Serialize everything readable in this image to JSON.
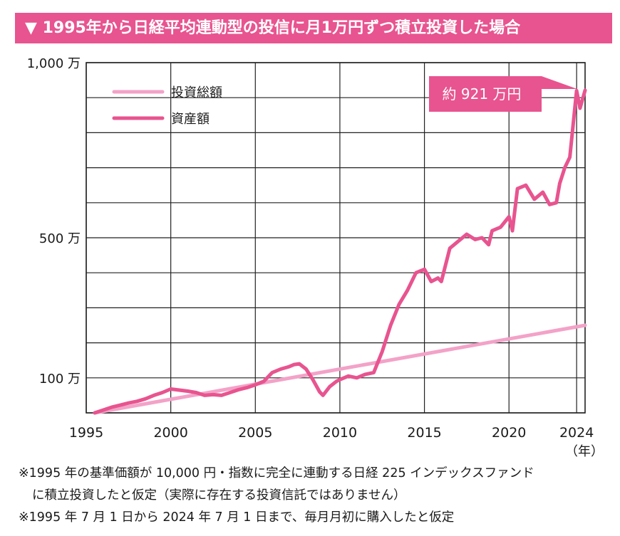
{
  "title": "▼ 1995年から日経平均連動型の投信に月1万円ずつ積立投資した場合",
  "chart_data": {
    "type": "line",
    "x_unit": "（年）",
    "x_ticks": [
      {
        "value": 1995,
        "label": "1995"
      },
      {
        "value": 2000,
        "label": "2000"
      },
      {
        "value": 2005,
        "label": "2005"
      },
      {
        "value": 2010,
        "label": "2010"
      },
      {
        "value": 2015,
        "label": "2015"
      },
      {
        "value": 2020,
        "label": "2020"
      },
      {
        "value": 2024,
        "label": "2024"
      }
    ],
    "xlim": [
      1995,
      2024.5
    ],
    "ylim": [
      0,
      1000
    ],
    "y_ticks": [
      {
        "value": 100,
        "label": "100 万"
      },
      {
        "value": 500,
        "label": "500 万"
      },
      {
        "value": 1000,
        "label": "1,000 万"
      }
    ],
    "y_gridlines": [
      0,
      100,
      200,
      300,
      400,
      500,
      600,
      700,
      800,
      900,
      1000
    ],
    "grid": true,
    "legend_position": "top-left",
    "series": [
      {
        "name": "投資総額",
        "color": "#f3a2c8",
        "x": [
          1995.5,
          2024.5
        ],
        "y": [
          0,
          250
        ]
      },
      {
        "name": "資産額",
        "color": "#e8548f",
        "x": [
          1995.5,
          1996,
          1996.5,
          1997,
          1997.5,
          1998,
          1998.5,
          1999,
          1999.5,
          2000,
          2000.5,
          2001,
          2001.5,
          2002,
          2002.5,
          2003,
          2003.5,
          2004,
          2004.5,
          2005,
          2005.5,
          2006,
          2006.5,
          2007,
          2007.3,
          2007.6,
          2008,
          2008.4,
          2008.8,
          2009,
          2009.4,
          2009.8,
          2010,
          2010.5,
          2011,
          2011.5,
          2012,
          2012.5,
          2013,
          2013.5,
          2014,
          2014.5,
          2015,
          2015.4,
          2015.8,
          2016,
          2016.5,
          2017,
          2017.5,
          2018,
          2018.4,
          2018.8,
          2019,
          2019.5,
          2020,
          2020.2,
          2020.5,
          2021,
          2021.5,
          2022,
          2022.4,
          2022.8,
          2023,
          2023.3,
          2023.6,
          2024,
          2024.2,
          2024.5
        ],
        "y": [
          0,
          8,
          16,
          22,
          28,
          33,
          40,
          50,
          58,
          68,
          65,
          62,
          58,
          50,
          52,
          50,
          58,
          66,
          72,
          80,
          90,
          115,
          125,
          132,
          138,
          140,
          125,
          95,
          60,
          50,
          75,
          90,
          95,
          105,
          100,
          110,
          115,
          175,
          250,
          310,
          350,
          400,
          410,
          375,
          385,
          375,
          470,
          490,
          510,
          495,
          500,
          480,
          520,
          530,
          560,
          520,
          640,
          650,
          610,
          630,
          595,
          600,
          655,
          700,
          730,
          920,
          870,
          921
        ]
      }
    ],
    "annotation": "約 921 万円"
  },
  "notes": [
    "※1995 年の基準価額が 10,000 円・指数に完全に連動する日経 225 インデックスファンド",
    "に積立投資したと仮定（実際に存在する投資信託ではありません）",
    "※1995 年 7 月 1 日から 2024 年 7 月 1 日まで、毎月月初に購入したと仮定"
  ]
}
